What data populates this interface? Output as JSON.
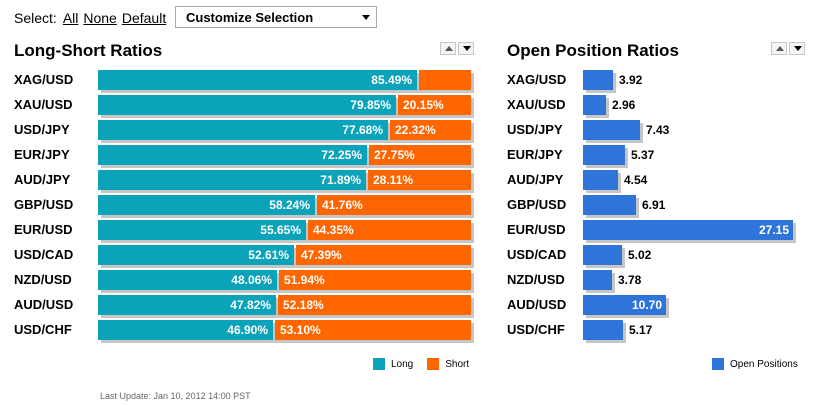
{
  "select": {
    "label": "Select:",
    "links": [
      "All",
      "None",
      "Default"
    ],
    "dropdown_value": "Customize Selection"
  },
  "long_short": {
    "title": "Long-Short Ratios",
    "rows": [
      {
        "pair": "XAG/USD",
        "long": 85.49,
        "long_label": "85.49%",
        "short": 14.51,
        "short_label": ""
      },
      {
        "pair": "XAU/USD",
        "long": 79.85,
        "long_label": "79.85%",
        "short": 20.15,
        "short_label": "20.15%"
      },
      {
        "pair": "USD/JPY",
        "long": 77.68,
        "long_label": "77.68%",
        "short": 22.32,
        "short_label": "22.32%"
      },
      {
        "pair": "EUR/JPY",
        "long": 72.25,
        "long_label": "72.25%",
        "short": 27.75,
        "short_label": "27.75%"
      },
      {
        "pair": "AUD/JPY",
        "long": 71.89,
        "long_label": "71.89%",
        "short": 28.11,
        "short_label": "28.11%"
      },
      {
        "pair": "GBP/USD",
        "long": 58.24,
        "long_label": "58.24%",
        "short": 41.76,
        "short_label": "41.76%"
      },
      {
        "pair": "EUR/USD",
        "long": 55.65,
        "long_label": "55.65%",
        "short": 44.35,
        "short_label": "44.35%"
      },
      {
        "pair": "USD/CAD",
        "long": 52.61,
        "long_label": "52.61%",
        "short": 47.39,
        "short_label": "47.39%"
      },
      {
        "pair": "NZD/USD",
        "long": 48.06,
        "long_label": "48.06%",
        "short": 51.94,
        "short_label": "51.94%"
      },
      {
        "pair": "AUD/USD",
        "long": 47.82,
        "long_label": "47.82%",
        "short": 52.18,
        "short_label": "52.18%"
      },
      {
        "pair": "USD/CHF",
        "long": 46.9,
        "long_label": "46.90%",
        "short": 53.1,
        "short_label": "53.10%"
      }
    ],
    "legend": [
      {
        "name": "Long",
        "color": "#0aa3b9"
      },
      {
        "name": "Short",
        "color": "#ff6600"
      }
    ]
  },
  "open_position": {
    "title": "Open Position Ratios",
    "max": 27.15,
    "rows": [
      {
        "pair": "XAG/USD",
        "value": 3.92,
        "label": "3.92"
      },
      {
        "pair": "XAU/USD",
        "value": 2.96,
        "label": "2.96"
      },
      {
        "pair": "USD/JPY",
        "value": 7.43,
        "label": "7.43"
      },
      {
        "pair": "EUR/JPY",
        "value": 5.37,
        "label": "5.37"
      },
      {
        "pair": "AUD/JPY",
        "value": 4.54,
        "label": "4.54"
      },
      {
        "pair": "GBP/USD",
        "value": 6.91,
        "label": "6.91"
      },
      {
        "pair": "EUR/USD",
        "value": 27.15,
        "label": "27.15"
      },
      {
        "pair": "USD/CAD",
        "value": 5.02,
        "label": "5.02"
      },
      {
        "pair": "NZD/USD",
        "value": 3.78,
        "label": "3.78"
      },
      {
        "pair": "AUD/USD",
        "value": 10.7,
        "label": "10.70"
      },
      {
        "pair": "USD/CHF",
        "value": 5.17,
        "label": "5.17"
      }
    ],
    "legend": [
      {
        "name": "Open Positions",
        "color": "#2f74d9"
      }
    ]
  },
  "footer": {
    "last_update": "Last Update: Jan 10, 2012 14:00 PST"
  }
}
